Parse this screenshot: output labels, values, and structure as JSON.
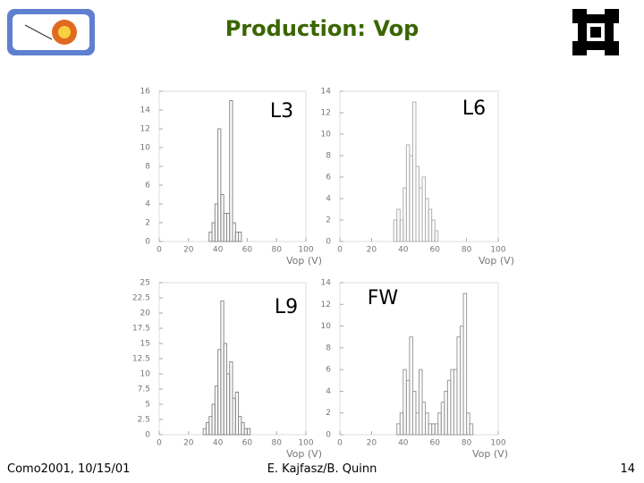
{
  "slide": {
    "title": "Production: Vop",
    "footer_left": "Como2001, 10/15/01",
    "footer_center": "E. Kajfasz/B. Quinn",
    "page_number": "14"
  },
  "chart_data": [
    {
      "type": "histogram",
      "title": "L3",
      "x_label": "Vop (V)",
      "color": "#8a8a8a",
      "bins": [
        34,
        36,
        38,
        40,
        42,
        44,
        46,
        48,
        50,
        52,
        54,
        56
      ],
      "counts": [
        1,
        2,
        4,
        12,
        5,
        3,
        3,
        15,
        2,
        1,
        1
      ],
      "xlim": [
        0,
        100
      ],
      "xticks": [
        0,
        20,
        40,
        60,
        80,
        100
      ],
      "ylim": [
        0,
        16
      ],
      "yticks": [
        0,
        2,
        4,
        6,
        8,
        10,
        12,
        14,
        16
      ]
    },
    {
      "type": "histogram",
      "title": "L6",
      "x_label": "Vop (V)",
      "color": "#b0b0b0",
      "bins": [
        34,
        36,
        38,
        40,
        42,
        44,
        46,
        48,
        50,
        52,
        54,
        56,
        58,
        60,
        62
      ],
      "counts": [
        2,
        3,
        2,
        5,
        9,
        8,
        13,
        7,
        5,
        6,
        4,
        3,
        2,
        1
      ],
      "xlim": [
        0,
        100
      ],
      "xticks": [
        0,
        20,
        40,
        60,
        80,
        100
      ],
      "ylim": [
        0,
        14
      ],
      "yticks": [
        0,
        2,
        4,
        6,
        8,
        10,
        12,
        14
      ]
    },
    {
      "type": "histogram",
      "title": "L9",
      "x_label": "Vop (V)",
      "color": "#8a8a8a",
      "bins": [
        30,
        32,
        34,
        36,
        38,
        40,
        42,
        44,
        46,
        48,
        50,
        52,
        54,
        56,
        58,
        60,
        62
      ],
      "counts": [
        1,
        2,
        3,
        5,
        8,
        14,
        22,
        15,
        10,
        12,
        6,
        7,
        3,
        2,
        1,
        1
      ],
      "xlim": [
        0,
        100
      ],
      "xticks": [
        0,
        20,
        40,
        60,
        80,
        100
      ],
      "ylim": [
        0,
        25
      ],
      "yticks": [
        0,
        2.5,
        5,
        7.5,
        10,
        12.5,
        15,
        17.5,
        20,
        22.5,
        25
      ]
    },
    {
      "type": "histogram",
      "title": "FW",
      "x_label": "Vop (V)",
      "color": "#9a9a9a",
      "bins": [
        36,
        38,
        40,
        42,
        44,
        46,
        48,
        50,
        52,
        54,
        56,
        58,
        60,
        62,
        64,
        66,
        68,
        70,
        72,
        74,
        76,
        78,
        80,
        82,
        84
      ],
      "counts": [
        1,
        2,
        6,
        5,
        9,
        4,
        2,
        6,
        3,
        2,
        1,
        1,
        1,
        2,
        3,
        4,
        5,
        6,
        6,
        9,
        10,
        13,
        2,
        1
      ],
      "xlim": [
        0,
        100
      ],
      "xticks": [
        0,
        20,
        40,
        60,
        80,
        100
      ],
      "ylim": [
        0,
        14
      ],
      "yticks": [
        0,
        2,
        4,
        6,
        8,
        10,
        12,
        14
      ]
    }
  ]
}
